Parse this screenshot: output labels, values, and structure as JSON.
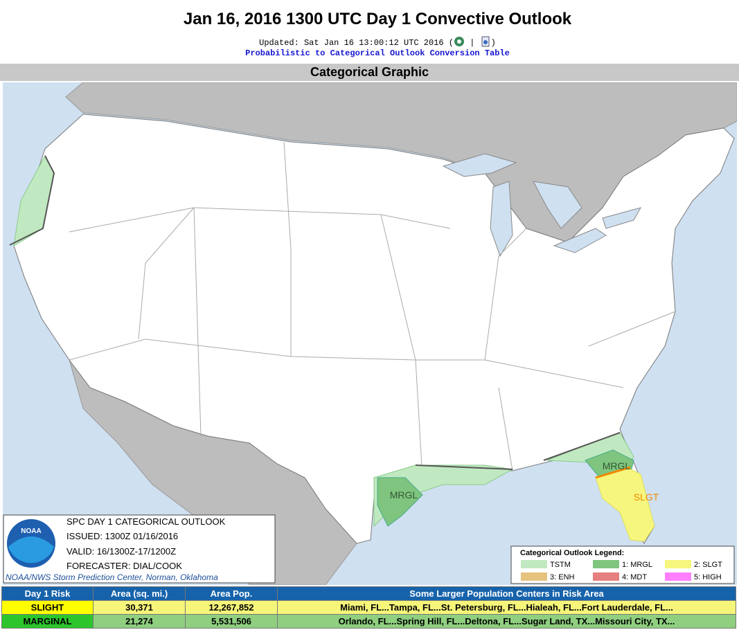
{
  "header": {
    "title": "Jan 16, 2016 1300 UTC Day 1 Convective Outlook",
    "updated": [
      "Updated: Sat Jan 16 13:00:12 UTC 2016 (",
      "|",
      ")"
    ],
    "link": "Probabilistic to Categorical Outlook Conversion Table"
  },
  "section_title": "Categorical Graphic",
  "map": {
    "labels": [
      "MRGL",
      "MRGL",
      "SLGT"
    ]
  },
  "info_box": {
    "lines": [
      "SPC DAY 1 CATEGORICAL OUTLOOK",
      "ISSUED: 1300Z 01/16/2016",
      "VALID: 16/1300Z-17/1200Z",
      "FORECASTER: DIAL/COOK"
    ],
    "logo": "NOAA",
    "credit": "NOAA/NWS Storm Prediction Center, Norman, Oklahoma"
  },
  "legend": {
    "title": "Categorical Outlook Legend:",
    "items": [
      {
        "label": "TSTM",
        "color": "#c1e9c1"
      },
      {
        "label": "1: MRGL",
        "color": "#7fc57f"
      },
      {
        "label": "2: SLGT",
        "color": "#f6f67f"
      },
      {
        "label": "3: ENH",
        "color": "#e6c27f"
      },
      {
        "label": "4: MDT",
        "color": "#e67f7f"
      },
      {
        "label": "5: HIGH",
        "color": "#ff7fff"
      }
    ]
  },
  "table": {
    "header": [
      "Day 1 Risk",
      "Area (sq. mi.)",
      "Area Pop.",
      "Some Larger Population Centers in Risk Area"
    ],
    "rows": [
      [
        "SLIGHT",
        "30,371",
        "12,267,852",
        "Miami, FL...Tampa, FL...St. Petersburg, FL...Hialeah, FL...Fort Lauderdale, FL..."
      ],
      [
        "MARGINAL",
        "21,274",
        "5,531,506",
        "Orlando, FL...Spring Hill, FL...Deltona, FL...Sugar Land, TX...Missouri City, TX..."
      ]
    ]
  }
}
